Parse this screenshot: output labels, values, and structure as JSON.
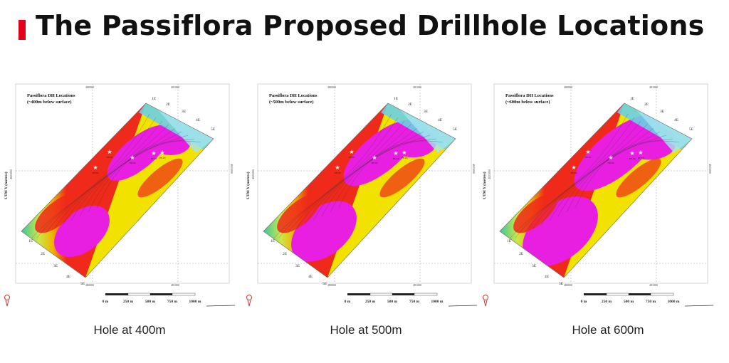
{
  "page": {
    "title": "The Passiflora Proposed Drillhole Locations",
    "accent_color": "#e3001b"
  },
  "maps": [
    {
      "heading_line1": "Passiflora DH Locations",
      "heading_line2": "(~400m  below surface)",
      "caption": "Hole at 400m",
      "axis_label": "UTM Y (metres)",
      "scale": [
        "0 m",
        "250 m",
        "500 m",
        "750 m",
        "1000 m"
      ],
      "grid_top": [
        "480000",
        "481000"
      ],
      "grid_left": [
        "4025000"
      ],
      "grid_right": [
        "4025000"
      ],
      "grid_bottom": [
        "480000",
        "481000"
      ],
      "sections_top": [
        "1E",
        "2E",
        "3E",
        "4E",
        "5E"
      ],
      "sections_bottom": [
        "1E",
        "2E",
        "3E",
        "4E",
        "5E"
      ],
      "holes": [
        "PF-01",
        "PF-02",
        "PF-03",
        "PF-04",
        "PF-05"
      ]
    },
    {
      "heading_line1": "Passiflora DH Locations",
      "heading_line2": "(~500m  below surface)",
      "caption": "Hole at 500m",
      "axis_label": "UTM Y (metres)",
      "scale": [
        "0 m",
        "250 m",
        "500 m",
        "750 m",
        "1000 m"
      ],
      "grid_top": [
        "480000",
        "481000"
      ],
      "grid_left": [
        "4025000"
      ],
      "grid_right": [
        "4025000"
      ],
      "grid_bottom": [
        "480000",
        "481000"
      ],
      "sections_top": [
        "1E",
        "2E",
        "3E",
        "4E",
        "5E"
      ],
      "sections_bottom": [
        "1E",
        "2E",
        "3E",
        "4E",
        "5E"
      ],
      "holes": [
        "PF-01",
        "PF-02",
        "PF-03",
        "PF-04",
        "PF-05"
      ]
    },
    {
      "heading_line1": "Passiflora DH Locations",
      "heading_line2": "(~600m  below surface)",
      "caption": "Hole at 600m",
      "axis_label": "UTM Y (metres)",
      "scale": [
        "0 m",
        "250 m",
        "500 m",
        "750 m",
        "1000 m"
      ],
      "grid_top": [
        "480000",
        "481000"
      ],
      "grid_left": [
        "4025000"
      ],
      "grid_right": [
        "4025000"
      ],
      "grid_bottom": [
        "480000",
        "481000"
      ],
      "sections_top": [
        "1E",
        "2E",
        "3E",
        "4E",
        "5E"
      ],
      "sections_bottom": [
        "1E",
        "2E",
        "3E",
        "4E",
        "5E"
      ],
      "holes": [
        "PF-01",
        "PF-02",
        "PF-03",
        "PF-04",
        "PF-05"
      ]
    }
  ]
}
